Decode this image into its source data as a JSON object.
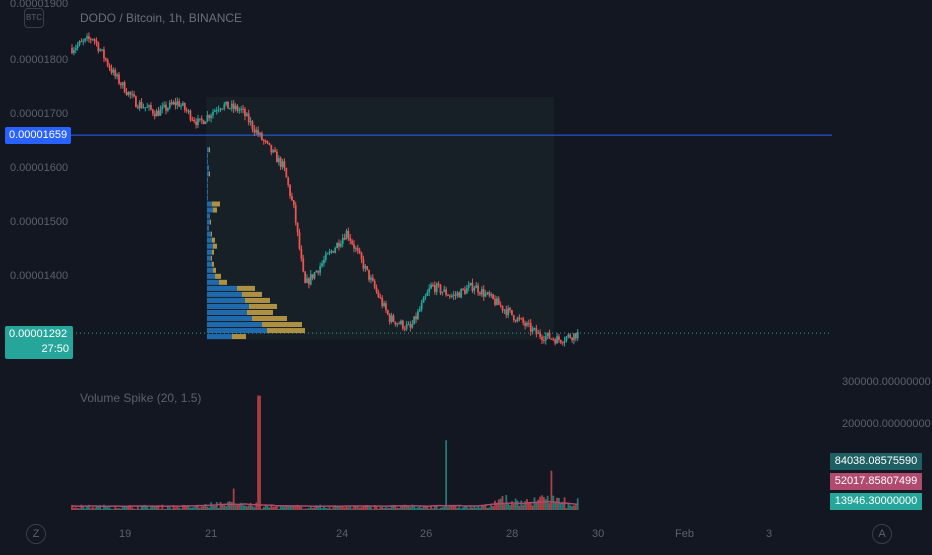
{
  "header": {
    "symbol_badge": "BTC",
    "title": "DODO / Bitcoin, 1h, BINANCE",
    "top_price_tick": "0.00001900"
  },
  "price_axis": {
    "ticks": [
      "0.00001800",
      "0.00001700",
      "0.00001600",
      "0.00001500",
      "0.00001400"
    ]
  },
  "markers": {
    "horizontal_line": {
      "label": "0.00001659",
      "value": 1.659e-05,
      "color": "#2962ff"
    },
    "last_price": {
      "label": "0.00001292",
      "countdown": "27:50",
      "value": 1.292e-05,
      "color": "#26a69a"
    }
  },
  "indicator": {
    "title": "Volume Spike (20, 1.5)",
    "axis_ticks": [
      "300000.00000000",
      "200000.00000000"
    ],
    "badges": [
      {
        "label": "84038.08575590",
        "color": "#1e5f63"
      },
      {
        "label": "52017.85807499",
        "color": "#b04a6e"
      },
      {
        "label": "13946.30000000",
        "color": "#26a69a"
      }
    ]
  },
  "time_axis": {
    "ticks": [
      "19",
      "21",
      "24",
      "26",
      "28",
      "30",
      "Feb",
      "3"
    ],
    "left_button": "Z",
    "right_button": "A"
  },
  "colors": {
    "background": "#131722",
    "up": "#26a69a",
    "down": "#ef5350",
    "volume_profile_up": "#2178c4",
    "volume_profile_down": "#c9a449",
    "volume_ma": "#b04a6e"
  },
  "chart_data": {
    "type": "candlestick",
    "title": "DODO / Bitcoin, 1h, BINANCE",
    "ylim": [
      1.27e-05,
      1.9e-05
    ],
    "close_path": [
      {
        "x": "Jan 17",
        "y": 1.82e-05
      },
      {
        "x": "Jan 17 12:00",
        "y": 1.84e-05
      },
      {
        "x": "Jan 18",
        "y": 1.77e-05
      },
      {
        "x": "Jan 18 12:00",
        "y": 1.72e-05
      },
      {
        "x": "Jan 19",
        "y": 1.7e-05
      },
      {
        "x": "Jan 19 12:00",
        "y": 1.72e-05
      },
      {
        "x": "Jan 20",
        "y": 1.68e-05
      },
      {
        "x": "Jan 20 12:00",
        "y": 1.715e-05
      },
      {
        "x": "Jan 21",
        "y": 1.705e-05
      },
      {
        "x": "Jan 21 12:00",
        "y": 1.65e-05
      },
      {
        "x": "Jan 22",
        "y": 1.6e-05
      },
      {
        "x": "Jan 22 06:00",
        "y": 1.52e-05
      },
      {
        "x": "Jan 22 12:00",
        "y": 1.38e-05
      },
      {
        "x": "Jan 23",
        "y": 1.43e-05
      },
      {
        "x": "Jan 23 12:00",
        "y": 1.48e-05
      },
      {
        "x": "Jan 24",
        "y": 1.4e-05
      },
      {
        "x": "Jan 24 12:00",
        "y": 1.32e-05
      },
      {
        "x": "Jan 25",
        "y": 1.3e-05
      },
      {
        "x": "Jan 25 12:00",
        "y": 1.38e-05
      },
      {
        "x": "Jan 26",
        "y": 1.36e-05
      },
      {
        "x": "Jan 26 12:00",
        "y": 1.38e-05
      },
      {
        "x": "Jan 27",
        "y": 1.35e-05
      },
      {
        "x": "Jan 27 12:00",
        "y": 1.32e-05
      },
      {
        "x": "Jan 28",
        "y": 1.29e-05
      },
      {
        "x": "Jan 28 12:00",
        "y": 1.28e-05
      },
      {
        "x": "Jan 29",
        "y": 1.292e-05
      }
    ],
    "horizontal_level": 1.659e-05,
    "last_price": 1.292e-05,
    "volume_profile": {
      "price_range": [
        1.28e-05,
        1.73e-05
      ],
      "rows_top_to_bottom": [
        [
          2,
          1
        ],
        [
          1,
          0
        ],
        [
          1,
          0
        ],
        [
          2,
          0
        ],
        [
          2,
          1
        ],
        [
          1,
          0
        ],
        [
          1,
          0
        ],
        [
          1,
          0
        ],
        [
          1,
          0
        ],
        [
          5,
          8
        ],
        [
          6,
          4
        ],
        [
          3,
          0
        ],
        [
          3,
          1
        ],
        [
          2,
          0
        ],
        [
          4,
          1
        ],
        [
          5,
          3
        ],
        [
          6,
          4
        ],
        [
          5,
          2
        ],
        [
          4,
          1
        ],
        [
          5,
          2
        ],
        [
          6,
          3
        ],
        [
          8,
          6
        ],
        [
          12,
          8
        ],
        [
          30,
          18
        ],
        [
          35,
          20
        ],
        [
          38,
          25
        ],
        [
          42,
          28
        ],
        [
          40,
          26
        ],
        [
          45,
          35
        ],
        [
          55,
          40
        ],
        [
          60,
          38
        ],
        [
          25,
          14
        ]
      ]
    },
    "volume_spike": {
      "ylim": [
        0,
        330000
      ],
      "spikes": [
        {
          "x": "Jan 20 20:00",
          "value": 60000,
          "color": "down"
        },
        {
          "x": "Jan 21 10:00",
          "value": 320000,
          "color": "down"
        },
        {
          "x": "Jan 25 20:00",
          "value": 195000,
          "color": "up"
        },
        {
          "x": "Jan 28 08:00",
          "value": 110000,
          "color": "down"
        }
      ],
      "last_values": [
        84038.0857559,
        52017.85807499,
        13946.3
      ]
    }
  }
}
